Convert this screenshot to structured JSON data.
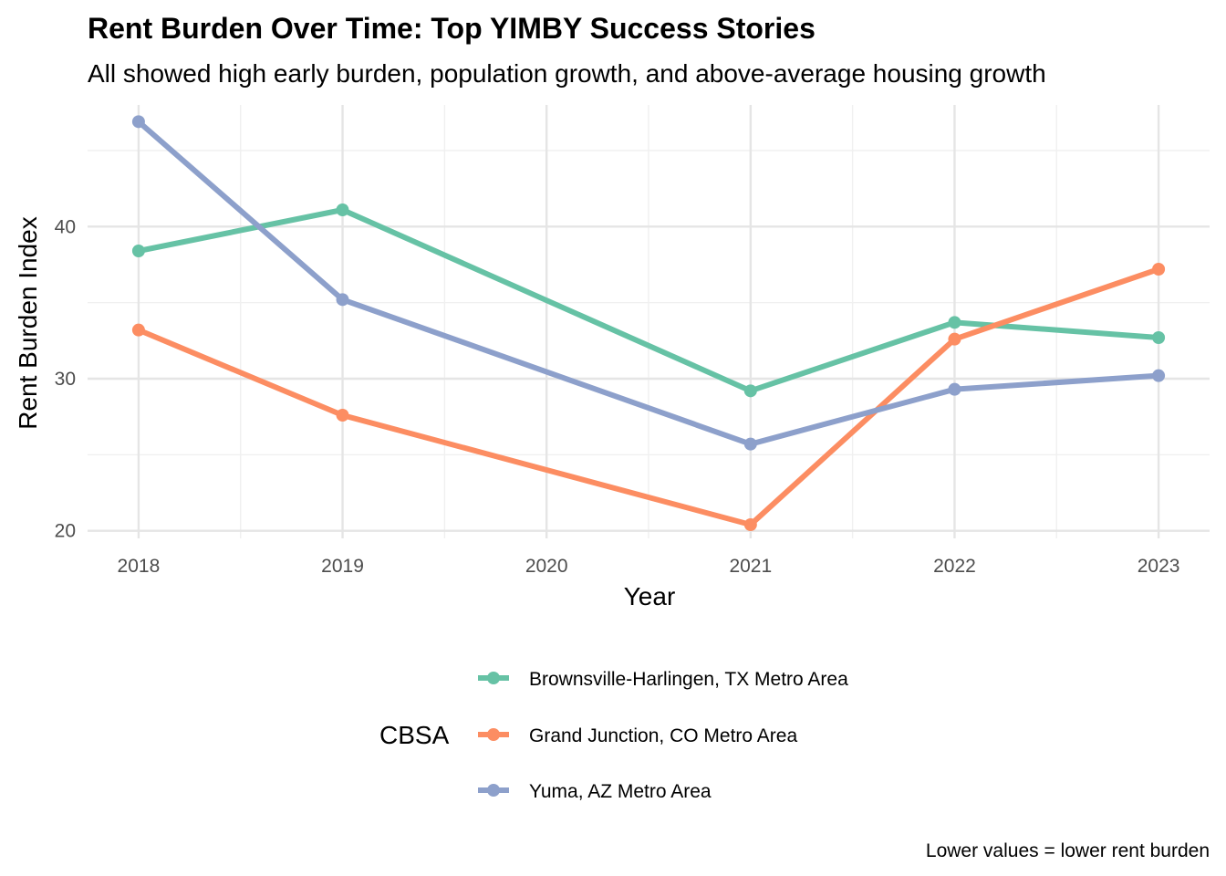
{
  "chart_data": {
    "type": "line",
    "title": "Rent Burden Over Time: Top YIMBY Success Stories",
    "subtitle": "All showed high early burden, population growth, and above-average housing growth",
    "xlabel": "Year",
    "ylabel": "Rent Burden Index",
    "caption": "Lower values = lower rent burden",
    "x_ticks": [
      "2018",
      "2019",
      "2020",
      "2021",
      "2022",
      "2023"
    ],
    "y_ticks": [
      "20",
      "30",
      "40"
    ],
    "xlim": [
      2017.75,
      2023.25
    ],
    "ylim": [
      19.5,
      48.0
    ],
    "grid": true,
    "legend": {
      "title": "CBSA",
      "position": "bottom"
    },
    "series": [
      {
        "name": "Brownsville-Harlingen, TX Metro Area",
        "color": "#66c2a5",
        "x": [
          2018,
          2019,
          2021,
          2022,
          2023
        ],
        "values": [
          38.4,
          41.1,
          29.2,
          33.7,
          32.7
        ]
      },
      {
        "name": "Grand Junction, CO Metro Area",
        "color": "#fc8d62",
        "x": [
          2018,
          2019,
          2021,
          2022,
          2023
        ],
        "values": [
          33.2,
          27.6,
          20.4,
          32.6,
          37.2
        ]
      },
      {
        "name": "Yuma, AZ Metro Area",
        "color": "#8da0cb",
        "x": [
          2018,
          2019,
          2021,
          2022,
          2023
        ],
        "values": [
          46.9,
          35.2,
          25.7,
          29.3,
          30.2
        ]
      }
    ]
  }
}
